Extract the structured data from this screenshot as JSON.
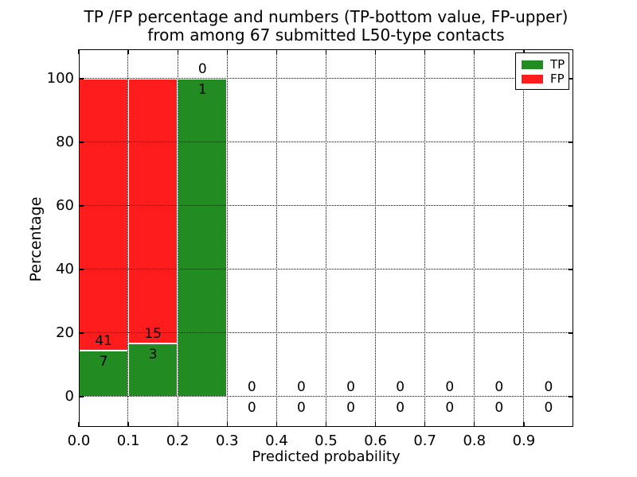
{
  "chart_data": {
    "type": "bar",
    "stacked": true,
    "title": "TP /FP percentage and numbers (TP-bottom value, FP-upper)",
    "subtitle": "from among 67 submitted L50-type contacts",
    "xlabel": "Predicted probability",
    "ylabel": "Percentage",
    "xlim": [
      0.0,
      1.0
    ],
    "ylim": [
      0,
      100
    ],
    "grid": true,
    "legend_position": "upper right",
    "x_ticks": [
      "0.0",
      "0.1",
      "0.2",
      "0.3",
      "0.4",
      "0.5",
      "0.6",
      "0.7",
      "0.8",
      "0.9"
    ],
    "y_ticks": [
      "0",
      "20",
      "40",
      "60",
      "80",
      "100"
    ],
    "total_submitted": 67,
    "legend": [
      {
        "label": "TP",
        "color": "#228b22"
      },
      {
        "label": "FP",
        "color": "#ff1c1c"
      }
    ],
    "bins": [
      {
        "x0": 0.0,
        "x1": 0.1,
        "tp": 7,
        "fp": 41,
        "tp_pct": 14.58,
        "fp_pct": 85.42
      },
      {
        "x0": 0.1,
        "x1": 0.2,
        "tp": 3,
        "fp": 15,
        "tp_pct": 16.67,
        "fp_pct": 83.33
      },
      {
        "x0": 0.2,
        "x1": 0.3,
        "tp": 1,
        "fp": 0,
        "tp_pct": 100.0,
        "fp_pct": 0.0
      },
      {
        "x0": 0.3,
        "x1": 0.4,
        "tp": 0,
        "fp": 0,
        "tp_pct": 0.0,
        "fp_pct": 0.0
      },
      {
        "x0": 0.4,
        "x1": 0.5,
        "tp": 0,
        "fp": 0,
        "tp_pct": 0.0,
        "fp_pct": 0.0
      },
      {
        "x0": 0.5,
        "x1": 0.6,
        "tp": 0,
        "fp": 0,
        "tp_pct": 0.0,
        "fp_pct": 0.0
      },
      {
        "x0": 0.6,
        "x1": 0.7,
        "tp": 0,
        "fp": 0,
        "tp_pct": 0.0,
        "fp_pct": 0.0
      },
      {
        "x0": 0.7,
        "x1": 0.8,
        "tp": 0,
        "fp": 0,
        "tp_pct": 0.0,
        "fp_pct": 0.0
      },
      {
        "x0": 0.8,
        "x1": 0.9,
        "tp": 0,
        "fp": 0,
        "tp_pct": 0.0,
        "fp_pct": 0.0
      },
      {
        "x0": 0.9,
        "x1": 1.0,
        "tp": 0,
        "fp": 0,
        "tp_pct": 0.0,
        "fp_pct": 0.0
      }
    ]
  },
  "colors": {
    "tp": "#228b22",
    "fp": "#ff1c1c",
    "bar_edge": "#ffffff",
    "grid": "#000000",
    "text": "#000000"
  }
}
